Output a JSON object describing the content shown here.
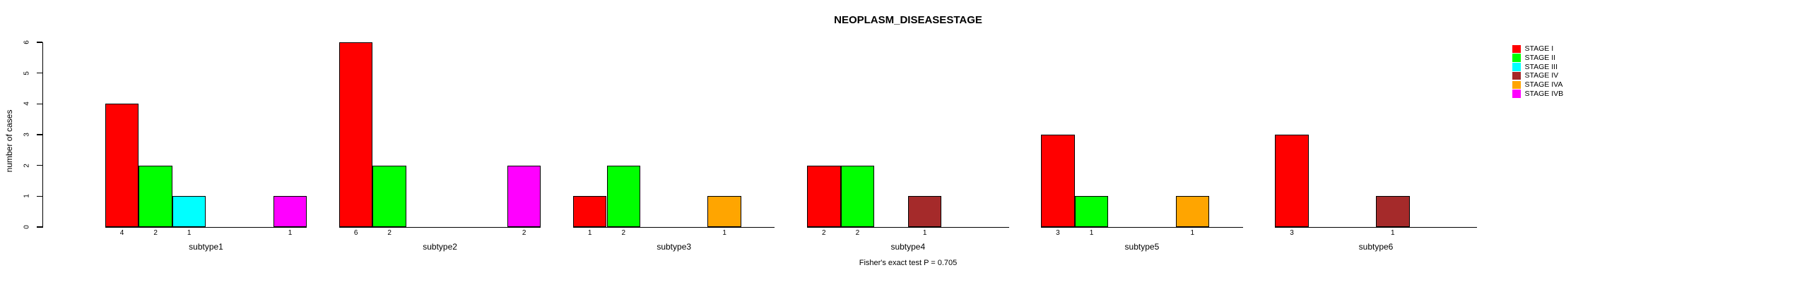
{
  "title": "NEOPLASM_DISEASESTAGE",
  "footer": "Fisher's exact test P = 0.705",
  "chart_data": {
    "type": "bar",
    "title": "NEOPLASM_DISEASESTAGE",
    "xlabel": "",
    "ylabel": "number of cases",
    "ylim": [
      0,
      6
    ],
    "yticks": [
      0,
      1,
      2,
      3,
      4,
      5,
      6
    ],
    "grid": false,
    "legend_position": "top-right",
    "bar_value_labels": "shown under each nonzero bar",
    "annotation": "Fisher's exact test P = 0.705",
    "categories": [
      "subtype1",
      "subtype2",
      "subtype3",
      "subtype4",
      "subtype5",
      "subtype6"
    ],
    "series": [
      {
        "name": "STAGE I",
        "color": "#FF0000",
        "values": [
          4,
          6,
          1,
          2,
          3,
          3
        ]
      },
      {
        "name": "STAGE II",
        "color": "#00FF00",
        "values": [
          2,
          2,
          2,
          2,
          1,
          0
        ]
      },
      {
        "name": "STAGE III",
        "color": "#00FFFF",
        "values": [
          1,
          0,
          0,
          0,
          0,
          0
        ]
      },
      {
        "name": "STAGE IV",
        "color": "#A52A2A",
        "values": [
          0,
          0,
          0,
          1,
          0,
          1
        ]
      },
      {
        "name": "STAGE IVA",
        "color": "#FFA500",
        "values": [
          0,
          0,
          1,
          0,
          1,
          0
        ]
      },
      {
        "name": "STAGE IVB",
        "color": "#FF00FF",
        "values": [
          1,
          2,
          0,
          0,
          0,
          0
        ]
      }
    ]
  }
}
